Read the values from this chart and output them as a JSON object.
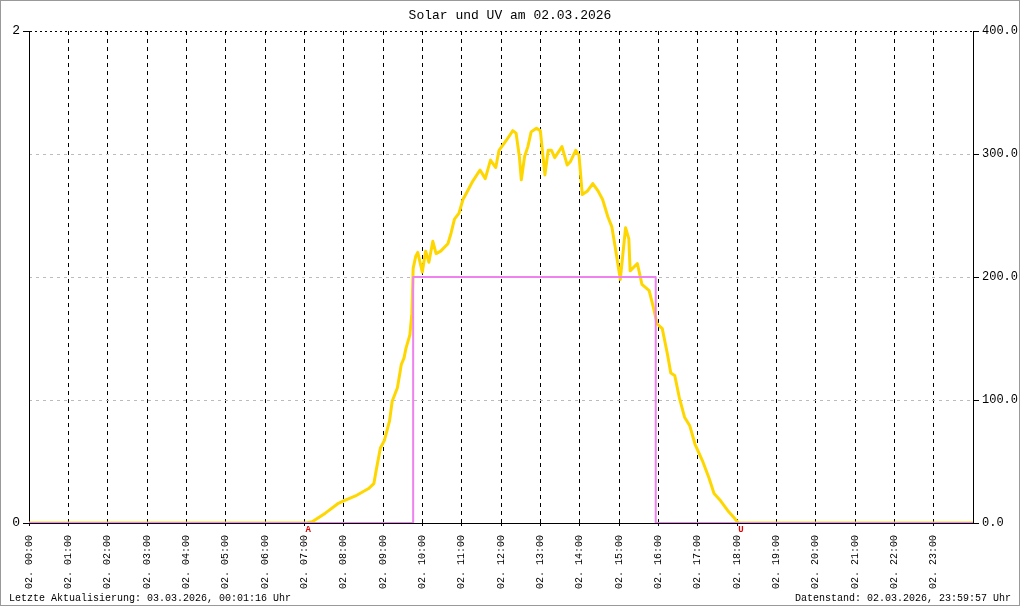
{
  "chart_data": {
    "type": "line",
    "title": "Solar und UV am 02.03.2026",
    "xlim": [
      "2026-03-02T00:00",
      "2026-03-03T00:00"
    ],
    "xticks": [
      {
        "value": "2026-03-02T00:00",
        "label": "02. 00:00"
      },
      {
        "value": "2026-03-02T01:00",
        "label": "02. 01:00"
      },
      {
        "value": "2026-03-02T02:00",
        "label": "02. 02:00"
      },
      {
        "value": "2026-03-02T03:00",
        "label": "02. 03:00"
      },
      {
        "value": "2026-03-02T04:00",
        "label": "02. 04:00"
      },
      {
        "value": "2026-03-02T05:00",
        "label": "02. 05:00"
      },
      {
        "value": "2026-03-02T06:00",
        "label": "02. 06:00"
      },
      {
        "value": "2026-03-02T07:00",
        "label": "02. 07:00"
      },
      {
        "value": "2026-03-02T08:00",
        "label": "02. 08:00"
      },
      {
        "value": "2026-03-02T09:00",
        "label": "02. 09:00"
      },
      {
        "value": "2026-03-02T10:00",
        "label": "02. 10:00"
      },
      {
        "value": "2026-03-02T11:00",
        "label": "02. 11:00"
      },
      {
        "value": "2026-03-02T12:00",
        "label": "02. 12:00"
      },
      {
        "value": "2026-03-02T13:00",
        "label": "02. 13:00"
      },
      {
        "value": "2026-03-02T14:00",
        "label": "02. 14:00"
      },
      {
        "value": "2026-03-02T15:00",
        "label": "02. 15:00"
      },
      {
        "value": "2026-03-02T16:00",
        "label": "02. 16:00"
      },
      {
        "value": "2026-03-02T17:00",
        "label": "02. 17:00"
      },
      {
        "value": "2026-03-02T18:00",
        "label": "02. 18:00"
      },
      {
        "value": "2026-03-02T19:00",
        "label": "02. 19:00"
      },
      {
        "value": "2026-03-02T20:00",
        "label": "02. 20:00"
      },
      {
        "value": "2026-03-02T21:00",
        "label": "02. 21:00"
      },
      {
        "value": "2026-03-02T22:00",
        "label": "02. 22:00"
      },
      {
        "value": "2026-03-02T23:00",
        "label": "02. 23:00"
      }
    ],
    "ylim": [
      0,
      2
    ],
    "yticks": [
      0,
      2
    ],
    "y2lim": [
      0,
      400
    ],
    "y2ticks": [
      {
        "value": 0,
        "label": "0.0"
      },
      {
        "value": 100,
        "label": "100.0"
      },
      {
        "value": 200,
        "label": "200.0"
      },
      {
        "value": 300,
        "label": "300.0"
      },
      {
        "value": 400,
        "label": "400.0"
      }
    ],
    "grid": true,
    "marker": "none",
    "series": [
      {
        "color": "#ffd700",
        "axis": "y2",
        "x": [
          "2026-03-02T00:00",
          "2026-03-02T07:03",
          "2026-03-02T07:12",
          "2026-03-02T07:32",
          "2026-03-02T07:52",
          "2026-03-02T08:00",
          "2026-03-02T08:18",
          "2026-03-02T08:38",
          "2026-03-02T08:46",
          "2026-03-02T08:50",
          "2026-03-02T08:56",
          "2026-03-02T09:02",
          "2026-03-02T09:10",
          "2026-03-02T09:14",
          "2026-03-02T09:22",
          "2026-03-02T09:28",
          "2026-03-02T09:32",
          "2026-03-02T09:35",
          "2026-03-02T09:41",
          "2026-03-02T09:44",
          "2026-03-02T09:46",
          "2026-03-02T09:50",
          "2026-03-02T09:53",
          "2026-03-02T10:00",
          "2026-03-02T10:05",
          "2026-03-02T10:10",
          "2026-03-02T10:16",
          "2026-03-02T10:21",
          "2026-03-02T10:28",
          "2026-03-02T10:39",
          "2026-03-02T10:44",
          "2026-03-02T10:49",
          "2026-03-02T10:56",
          "2026-03-02T11:02",
          "2026-03-02T11:10",
          "2026-03-02T11:17",
          "2026-03-02T11:28",
          "2026-03-02T11:36",
          "2026-03-02T11:44",
          "2026-03-02T11:52",
          "2026-03-02T11:57",
          "2026-03-02T12:08",
          "2026-03-02T12:18",
          "2026-03-02T12:23",
          "2026-03-02T12:28",
          "2026-03-02T12:31",
          "2026-03-02T12:36",
          "2026-03-02T12:41",
          "2026-03-02T12:46",
          "2026-03-02T12:54",
          "2026-03-02T13:00",
          "2026-03-02T13:07",
          "2026-03-02T13:12",
          "2026-03-02T13:17",
          "2026-03-02T13:22",
          "2026-03-02T13:33",
          "2026-03-02T13:41",
          "2026-03-02T13:46",
          "2026-03-02T13:54",
          "2026-03-02T13:59",
          "2026-03-02T14:04",
          "2026-03-02T14:12",
          "2026-03-02T14:20",
          "2026-03-02T14:28",
          "2026-03-02T14:35",
          "2026-03-02T14:43",
          "2026-03-02T14:49",
          "2026-03-02T14:54",
          "2026-03-02T15:02",
          "2026-03-02T15:10",
          "2026-03-02T15:15",
          "2026-03-02T15:17",
          "2026-03-02T15:28",
          "2026-03-02T15:35",
          "2026-03-02T15:46",
          "2026-03-02T15:53",
          "2026-03-02T15:58",
          "2026-03-02T16:06",
          "2026-03-02T16:14",
          "2026-03-02T16:19",
          "2026-03-02T16:25",
          "2026-03-02T16:32",
          "2026-03-02T16:40",
          "2026-03-02T16:48",
          "2026-03-02T16:56",
          "2026-03-02T17:07",
          "2026-03-02T17:17",
          "2026-03-02T17:25",
          "2026-03-02T17:35",
          "2026-03-02T17:46",
          "2026-03-02T17:56",
          "2026-03-02T18:02",
          "2026-03-02T23:59"
        ],
        "values": [
          0,
          0,
          1,
          8,
          16,
          18,
          22,
          28,
          32,
          44,
          61,
          67,
          83,
          99,
          110,
          129,
          134,
          142,
          153,
          170,
          207,
          217,
          220,
          204,
          221,
          212,
          229,
          219,
          221,
          227,
          236,
          247,
          252,
          263,
          271,
          278,
          287,
          280,
          295,
          289,
          303,
          311,
          319,
          317,
          298,
          279,
          298,
          306,
          318,
          321,
          319,
          283,
          303,
          303,
          297,
          306,
          291,
          294,
          303,
          299,
          267,
          270,
          276,
          270,
          263,
          249,
          241,
          225,
          198,
          240,
          231,
          205,
          211,
          194,
          189,
          174,
          162,
          158,
          137,
          122,
          120,
          102,
          86,
          79,
          64,
          51,
          37,
          24,
          18,
          10,
          4,
          0,
          0
        ]
      },
      {
        "type": "step",
        "color": "#ee82ee",
        "x": [
          "2026-03-02T00:00",
          "2026-03-02T09:46",
          "2026-03-02T15:56",
          "2026-03-02T23:59"
        ],
        "values": [
          0,
          1,
          0,
          0
        ]
      }
    ],
    "annotations": [
      {
        "text": "A",
        "x": "2026-03-02T07:06",
        "y": 0
      },
      {
        "text": "U",
        "x": "2026-03-02T18:06",
        "y": 0
      },
      "Letzte Aktualisierung: 03.03.2026, 00:01:16 Uhr",
      "Datenstand: 02.03.2026, 23:59:57 Uhr"
    ]
  }
}
